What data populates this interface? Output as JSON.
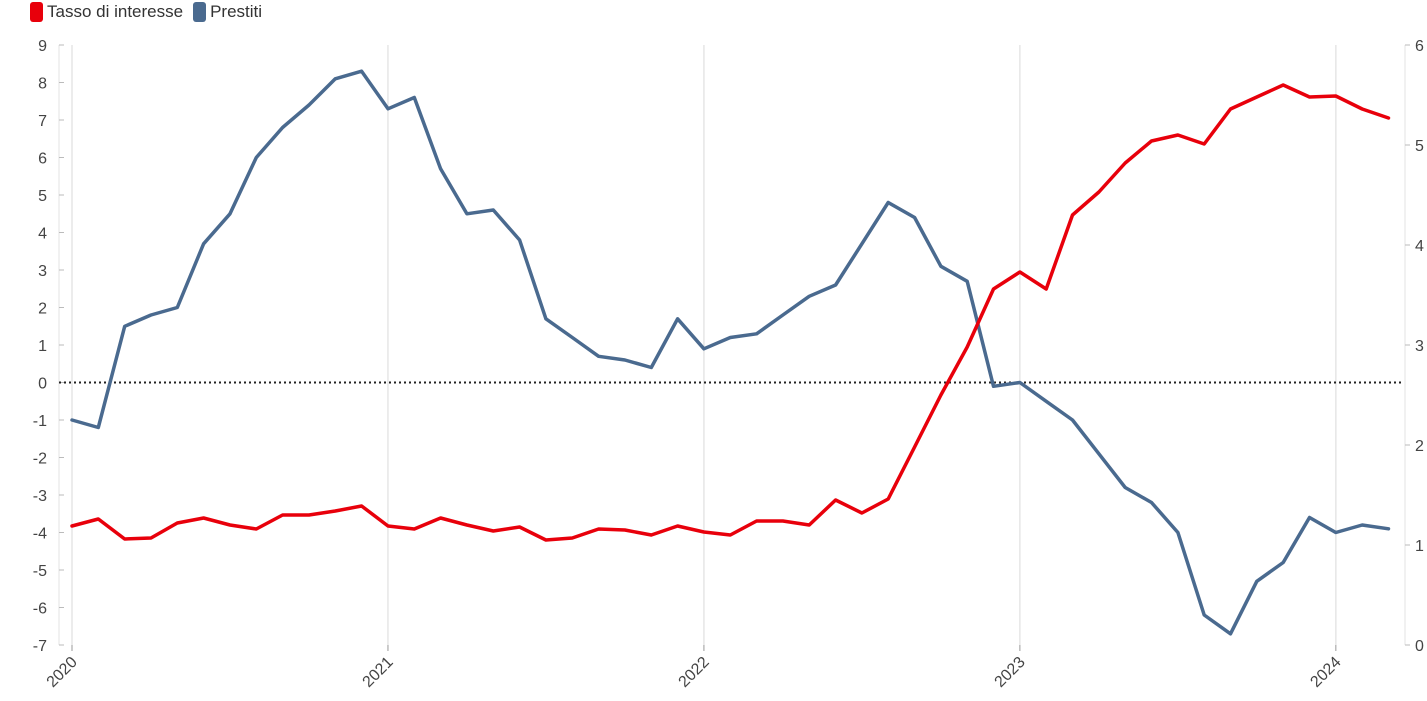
{
  "legend": {
    "items": [
      {
        "label": "Tasso di interesse",
        "color": "#e8000b"
      },
      {
        "label": "Prestiti",
        "color": "#4a6a8f"
      }
    ]
  },
  "chart_data": {
    "type": "line",
    "title": "",
    "xlabel": "",
    "ylabel": "",
    "x_ticks": [
      "2020",
      "2021",
      "2022",
      "2023",
      "2024"
    ],
    "y_left_ticks": [
      "9",
      "8",
      "7",
      "6",
      "5",
      "4",
      "3",
      "2",
      "1",
      "0",
      "-1",
      "-2",
      "-3",
      "-4",
      "-5",
      "-6",
      "-7"
    ],
    "y_right_ticks": [
      "6",
      "5",
      "4",
      "3",
      "2",
      "1",
      "0"
    ],
    "ylim_left": [
      -7,
      9
    ],
    "ylim_right": [
      0,
      6
    ],
    "x_range": [
      "2020-01",
      "2024-03"
    ],
    "zero_line": "dotted",
    "grid": "vertical at years",
    "legend_position": "top-left",
    "x": [
      "2020-01",
      "2020-02",
      "2020-03",
      "2020-04",
      "2020-05",
      "2020-06",
      "2020-07",
      "2020-08",
      "2020-09",
      "2020-10",
      "2020-11",
      "2020-12",
      "2021-01",
      "2021-02",
      "2021-03",
      "2021-04",
      "2021-05",
      "2021-06",
      "2021-07",
      "2021-08",
      "2021-09",
      "2021-10",
      "2021-11",
      "2021-12",
      "2022-01",
      "2022-02",
      "2022-03",
      "2022-04",
      "2022-05",
      "2022-06",
      "2022-07",
      "2022-08",
      "2022-09",
      "2022-10",
      "2022-11",
      "2022-12",
      "2023-01",
      "2023-02",
      "2023-03",
      "2023-04",
      "2023-05",
      "2023-06",
      "2023-07",
      "2023-08",
      "2023-09",
      "2023-10",
      "2023-11",
      "2023-12",
      "2024-01",
      "2024-02",
      "2024-03"
    ],
    "series": [
      {
        "name": "Tasso di interesse",
        "axis": "right",
        "color": "#e8000b",
        "values": [
          1.19,
          1.26,
          1.06,
          1.07,
          1.22,
          1.27,
          1.2,
          1.16,
          1.3,
          1.3,
          1.34,
          1.39,
          1.19,
          1.16,
          1.27,
          1.2,
          1.14,
          1.18,
          1.05,
          1.07,
          1.16,
          1.15,
          1.1,
          1.19,
          1.13,
          1.1,
          1.24,
          1.24,
          1.2,
          1.45,
          1.32,
          1.46,
          1.98,
          2.5,
          2.98,
          3.56,
          3.73,
          3.56,
          4.3,
          4.53,
          4.82,
          5.04,
          5.1,
          5.01,
          5.36,
          5.48,
          5.6,
          5.48,
          5.49,
          5.36,
          5.27
        ]
      },
      {
        "name": "Prestiti",
        "axis": "left",
        "color": "#4a6a8f",
        "values": [
          -1.0,
          -1.2,
          1.5,
          1.8,
          2.0,
          3.7,
          4.5,
          6.0,
          6.8,
          7.4,
          8.1,
          8.3,
          7.3,
          7.6,
          5.7,
          4.5,
          4.6,
          3.8,
          1.7,
          1.2,
          0.7,
          0.6,
          0.4,
          1.7,
          0.9,
          1.2,
          1.3,
          1.8,
          2.3,
          2.6,
          3.7,
          4.8,
          4.4,
          3.1,
          2.7,
          -0.1,
          0.0,
          -0.5,
          -1.0,
          -1.9,
          -2.8,
          -3.2,
          -4.0,
          -6.2,
          -6.7,
          -5.3,
          -4.8,
          -3.6,
          -4.0,
          -3.8,
          -3.9
        ]
      }
    ]
  }
}
